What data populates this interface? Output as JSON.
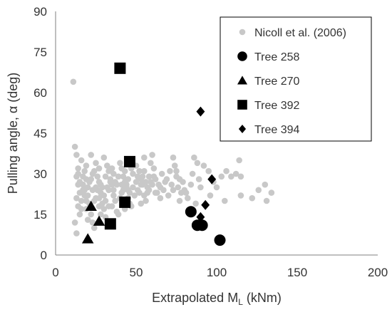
{
  "chart_data": {
    "type": "scatter",
    "xlabel": {
      "main": "Extrapolated M",
      "sub": "L",
      "unit": " (kNm)"
    },
    "ylabel": "Pulling angle, α (deg)",
    "xlim": [
      0,
      200
    ],
    "ylim": [
      0,
      90
    ],
    "xticks": [
      "0",
      "50",
      "100",
      "150",
      "200"
    ],
    "yticks": [
      "0",
      "15",
      "30",
      "45",
      "60",
      "75",
      "90"
    ],
    "grid": false,
    "legend_position": "top-right",
    "series": [
      {
        "name": "Nicoll et al. (2006)",
        "marker": "circle-small",
        "color": "#c8c8c8",
        "points": [
          [
            11,
            64
          ],
          [
            12,
            40
          ],
          [
            13,
            37
          ],
          [
            14,
            32
          ],
          [
            13,
            29
          ],
          [
            14,
            26
          ],
          [
            15,
            23
          ],
          [
            13,
            21
          ],
          [
            14,
            18
          ],
          [
            15,
            15
          ],
          [
            12,
            12
          ],
          [
            13,
            8
          ],
          [
            16,
            35
          ],
          [
            18,
            31
          ],
          [
            19,
            28
          ],
          [
            17,
            26
          ],
          [
            18,
            24
          ],
          [
            20,
            22
          ],
          [
            21,
            19
          ],
          [
            19,
            17
          ],
          [
            22,
            15
          ],
          [
            20,
            13
          ],
          [
            23,
            12
          ],
          [
            24,
            10
          ],
          [
            22,
            37
          ],
          [
            25,
            34
          ],
          [
            24,
            31
          ],
          [
            26,
            29
          ],
          [
            27,
            27
          ],
          [
            25,
            25
          ],
          [
            28,
            23
          ],
          [
            27,
            21
          ],
          [
            29,
            19
          ],
          [
            30,
            17
          ],
          [
            28,
            15
          ],
          [
            31,
            14
          ],
          [
            30,
            36
          ],
          [
            32,
            33
          ],
          [
            33,
            31
          ],
          [
            34,
            28
          ],
          [
            35,
            26
          ],
          [
            33,
            24
          ],
          [
            36,
            22
          ],
          [
            37,
            20
          ],
          [
            35,
            18
          ],
          [
            38,
            16
          ],
          [
            39,
            15
          ],
          [
            36,
            30
          ],
          [
            40,
            34
          ],
          [
            41,
            32
          ],
          [
            42,
            29
          ],
          [
            43,
            27
          ],
          [
            44,
            25
          ],
          [
            41,
            23
          ],
          [
            45,
            21
          ],
          [
            46,
            19
          ],
          [
            43,
            17
          ],
          [
            47,
            18
          ],
          [
            45,
            28
          ],
          [
            48,
            30
          ],
          [
            50,
            33
          ],
          [
            52,
            31
          ],
          [
            53,
            28
          ],
          [
            54,
            26
          ],
          [
            51,
            24
          ],
          [
            55,
            22
          ],
          [
            56,
            20
          ],
          [
            53,
            19
          ],
          [
            57,
            25
          ],
          [
            58,
            29
          ],
          [
            55,
            36
          ],
          [
            59,
            34
          ],
          [
            60,
            37
          ],
          [
            61,
            32
          ],
          [
            62,
            28
          ],
          [
            64,
            26
          ],
          [
            63,
            23
          ],
          [
            65,
            21
          ],
          [
            66,
            30
          ],
          [
            68,
            27
          ],
          [
            67,
            24
          ],
          [
            70,
            22
          ],
          [
            72,
            26
          ],
          [
            71,
            31
          ],
          [
            73,
            36
          ],
          [
            74,
            33
          ],
          [
            75,
            29
          ],
          [
            76,
            25
          ],
          [
            78,
            23
          ],
          [
            77,
            20
          ],
          [
            79,
            27
          ],
          [
            80,
            24
          ],
          [
            82,
            21
          ],
          [
            84,
            26
          ],
          [
            86,
            36
          ],
          [
            85,
            30
          ],
          [
            88,
            34
          ],
          [
            89,
            28
          ],
          [
            92,
            33
          ],
          [
            95,
            31
          ],
          [
            98,
            27
          ],
          [
            100,
            25
          ],
          [
            103,
            29
          ],
          [
            106,
            31
          ],
          [
            109,
            29
          ],
          [
            112,
            30
          ],
          [
            115,
            29
          ],
          [
            114,
            35
          ],
          [
            115,
            22
          ],
          [
            122,
            21
          ],
          [
            126,
            24
          ],
          [
            130,
            26
          ],
          [
            131,
            20
          ],
          [
            134,
            23
          ],
          [
            105,
            20
          ],
          [
            96,
            22
          ],
          [
            90,
            25
          ],
          [
            83,
            16
          ],
          [
            87,
            19
          ],
          [
            75,
            31
          ],
          [
            16,
            20
          ],
          [
            18,
            22
          ],
          [
            20,
            25
          ],
          [
            22,
            28
          ],
          [
            24,
            20
          ],
          [
            26,
            24
          ],
          [
            28,
            26
          ],
          [
            30,
            22
          ],
          [
            32,
            25
          ],
          [
            34,
            27
          ],
          [
            36,
            24
          ],
          [
            38,
            26
          ],
          [
            40,
            21
          ],
          [
            42,
            24
          ],
          [
            44,
            26
          ],
          [
            46,
            23
          ],
          [
            48,
            25
          ],
          [
            50,
            27
          ],
          [
            52,
            23
          ],
          [
            54,
            29
          ],
          [
            56,
            27
          ],
          [
            58,
            24
          ],
          [
            60,
            26
          ],
          [
            62,
            23
          ],
          [
            17,
            29
          ],
          [
            19,
            33
          ],
          [
            23,
            30
          ],
          [
            27,
            32
          ],
          [
            31,
            29
          ],
          [
            35,
            32
          ],
          [
            39,
            29
          ],
          [
            43,
            31
          ],
          [
            47,
            32
          ],
          [
            51,
            29
          ],
          [
            55,
            31
          ],
          [
            59,
            27
          ],
          [
            15,
            27
          ],
          [
            17,
            24
          ],
          [
            19,
            20
          ],
          [
            21,
            27
          ],
          [
            23,
            24
          ],
          [
            25,
            21
          ],
          [
            27,
            18
          ],
          [
            29,
            25
          ],
          [
            31,
            20
          ],
          [
            33,
            18
          ],
          [
            37,
            27
          ],
          [
            41,
            26
          ],
          [
            45,
            24
          ],
          [
            49,
            22
          ],
          [
            53,
            26
          ],
          [
            57,
            23
          ],
          [
            61,
            29
          ],
          [
            65,
            25
          ],
          [
            69,
            28
          ],
          [
            73,
            24
          ],
          [
            77,
            28
          ],
          [
            81,
            23
          ],
          [
            14,
            30
          ],
          [
            16,
            17
          ]
        ]
      },
      {
        "name": "Tree 258",
        "marker": "circle",
        "color": "#000000",
        "points": [
          [
            84,
            16
          ],
          [
            88,
            11
          ],
          [
            91,
            11
          ],
          [
            102,
            5.5
          ]
        ]
      },
      {
        "name": "Tree 270",
        "marker": "triangle",
        "color": "#000000",
        "points": [
          [
            20,
            6
          ],
          [
            22,
            18
          ],
          [
            27,
            12.5
          ]
        ]
      },
      {
        "name": "Tree 392",
        "marker": "square",
        "color": "#000000",
        "points": [
          [
            40,
            69
          ],
          [
            46,
            34.5
          ],
          [
            43,
            19.5
          ],
          [
            34,
            11.5
          ]
        ]
      },
      {
        "name": "Tree 394",
        "marker": "diamond",
        "color": "#000000",
        "points": [
          [
            90,
            53
          ],
          [
            97,
            28
          ],
          [
            93,
            18.5
          ],
          [
            90,
            14
          ],
          [
            88,
            11
          ]
        ]
      }
    ]
  }
}
